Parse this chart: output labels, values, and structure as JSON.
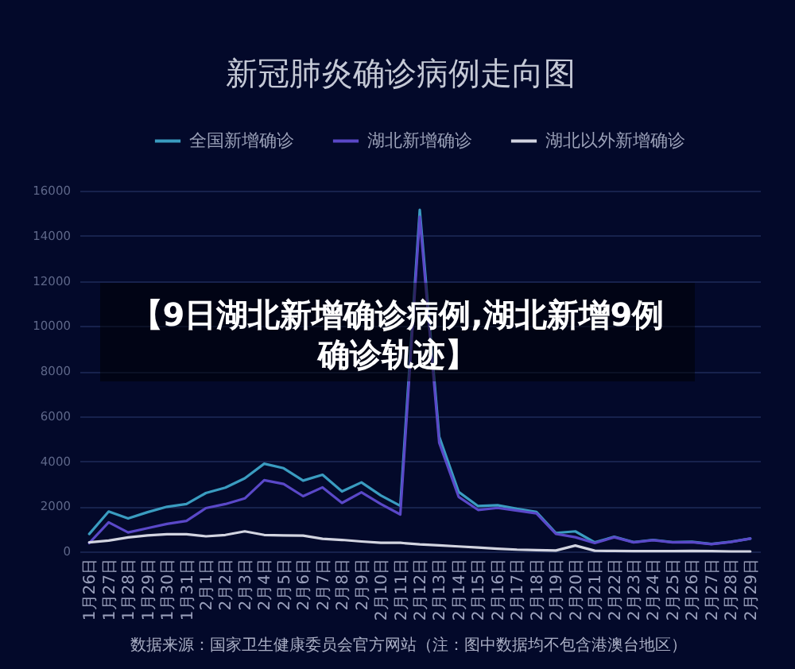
{
  "chart_data": {
    "type": "line",
    "title": "新冠肺炎确诊病例走向图",
    "categories": [
      "1月26日",
      "1月27日",
      "1月28日",
      "1月29日",
      "1月30日",
      "1月31日",
      "2月1日",
      "2月2日",
      "2月3日",
      "2月4日",
      "2月5日",
      "2月6日",
      "2月7日",
      "2月8日",
      "2月9日",
      "2月10日",
      "2月11日",
      "2月12日",
      "2月13日",
      "2月14日",
      "2月15日",
      "2月16日",
      "2月17日",
      "2月18日",
      "2月19日",
      "2月20日",
      "2月21日",
      "2月22日",
      "2月23日",
      "2月24日",
      "2月25日",
      "2月26日",
      "2月27日",
      "2月28日",
      "2月29日"
    ],
    "series": [
      {
        "name": "全国新增确诊",
        "color": "#3a9cc0",
        "values": [
          770,
          1770,
          1460,
          1740,
          1980,
          2100,
          2590,
          2830,
          3240,
          3890,
          3690,
          3140,
          3400,
          2660,
          3060,
          2480,
          2020,
          15150,
          5090,
          2640,
          2010,
          2050,
          1890,
          1750,
          820,
          890,
          400,
          650,
          410,
          510,
          410,
          430,
          330,
          430,
          570
        ]
      },
      {
        "name": "湖北新增确诊",
        "color": "#5a48c8",
        "values": [
          370,
          1290,
          840,
          1030,
          1220,
          1350,
          1920,
          2100,
          2350,
          3160,
          2990,
          2450,
          2840,
          2150,
          2620,
          2100,
          1640,
          14840,
          4820,
          2420,
          1840,
          1930,
          1810,
          1690,
          780,
          630,
          370,
          630,
          400,
          500,
          400,
          410,
          320,
          420,
          570
        ]
      },
      {
        "name": "湖北以外新增确诊",
        "color": "#d2d4e0",
        "values": [
          400,
          480,
          620,
          710,
          760,
          760,
          670,
          730,
          890,
          730,
          710,
          700,
          560,
          510,
          440,
          380,
          380,
          310,
          270,
          220,
          170,
          120,
          80,
          60,
          40,
          260,
          30,
          20,
          10,
          10,
          10,
          20,
          10,
          0,
          0
        ]
      }
    ],
    "ylim": [
      0,
      16000
    ],
    "yticks": [
      0,
      2000,
      4000,
      6000,
      8000,
      10000,
      12000,
      14000,
      16000
    ],
    "grid": "y",
    "legend": "top",
    "annotations": [
      "【9日湖北新增确诊病例,湖北新增9例确诊轨迹】",
      "数据来源：国家卫生健康委员会官方网站（注：图中数据均不包含港澳台地区）"
    ]
  }
}
